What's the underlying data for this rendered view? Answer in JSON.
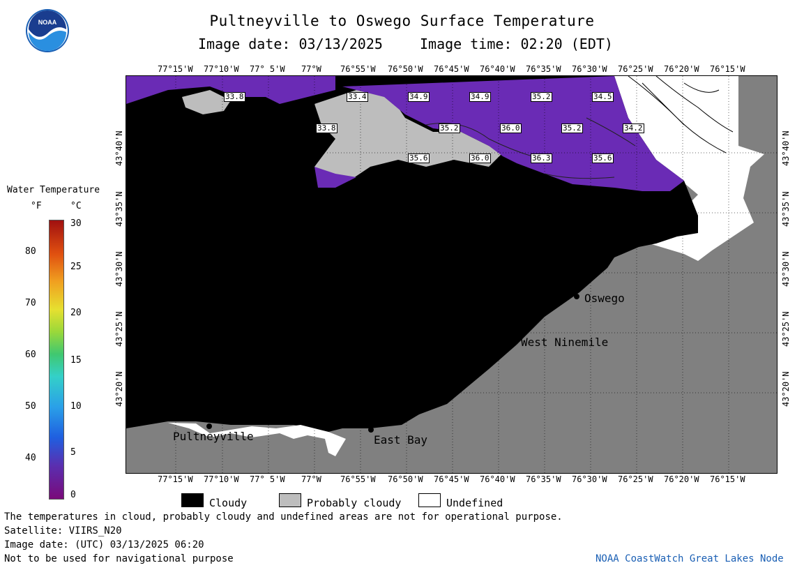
{
  "header": {
    "title": "Pultneyville to Oswego Surface Temperature",
    "image_date": "Image date: 03/13/2025",
    "image_time": "Image time: 02:20 (EDT)"
  },
  "logo_text": "NOAA",
  "legend": {
    "title": "Water Temperature",
    "unit_f": "°F",
    "unit_c": "°C",
    "f_ticks": [
      "80",
      "70",
      "60",
      "50",
      "40"
    ],
    "c_ticks": [
      "30",
      "25",
      "20",
      "15",
      "10",
      "5",
      "0"
    ]
  },
  "axes": {
    "top_lon": [
      "77°15'W",
      "77°10'W",
      "77° 5'W",
      "77°W",
      "76°55'W",
      "76°50'W",
      "76°45'W",
      "76°40'W",
      "76°35'W",
      "76°30'W",
      "76°25'W",
      "76°20'W",
      "76°15'W"
    ],
    "bottom_lon": [
      "77°15'W",
      "77°10'W",
      "77° 5'W",
      "77°W",
      "76°55'W",
      "76°50'W",
      "76°45'W",
      "76°40'W",
      "76°35'W",
      "76°30'W",
      "76°25'W",
      "76°20'W",
      "76°15'W"
    ],
    "lat": [
      "43°40'N",
      "43°35'N",
      "43°30'N",
      "43°25'N",
      "43°20'N"
    ]
  },
  "temps": [
    "33.8",
    "33.4",
    "34.9",
    "34.9",
    "35.2",
    "34.5",
    "33.8",
    "35.2",
    "36.0",
    "35.2",
    "34.2",
    "35.6",
    "36.0",
    "36.3",
    "35.6"
  ],
  "places": {
    "oswego": "Oswego",
    "west_ninemile": "West Ninemile",
    "pultneyville": "Pultneyville",
    "east_bay": "East Bay"
  },
  "key": {
    "cloudy": "Cloudy",
    "probably_cloudy": "Probably cloudy",
    "undefined": "Undefined"
  },
  "colors": {
    "cloudy": "#000000",
    "probably_cloudy": "#bdbdbd",
    "undefined": "#ffffff",
    "land": "#808080",
    "water_cold": "#6a2bb5"
  },
  "footer": {
    "note": "The temperatures in cloud, probably cloudy and undefined areas are not for operational purpose.",
    "satellite": "Satellite: VIIRS_N20",
    "utc_date": "Image date: (UTC) 03/13/2025  06:20",
    "nav": "Not to be used for navigational purpose",
    "credit": "NOAA CoastWatch Great Lakes Node"
  }
}
